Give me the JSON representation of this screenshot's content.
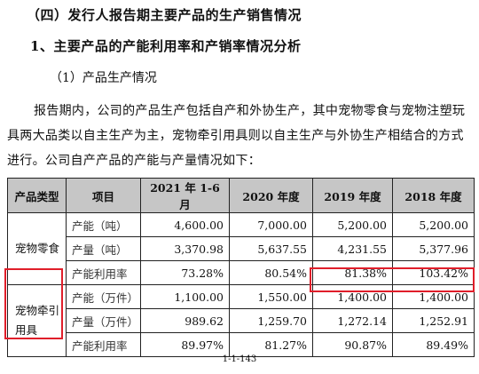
{
  "section_title": "（四）发行人报告期主要产品的生产销售情况",
  "subsection_title": "1、主要产品的产能利用率和产销率情况分析",
  "sub_subsection_title": "（1）产品生产情况",
  "paragraph": "报告期内，公司的产品生产包括自产和外协生产，其中宠物零食与宠物注塑玩具两大品类以自主生产为主，宠物牵引用具则以自主生产与外协生产相结合的方式进行。公司自产产品的产能与产量情况如下：",
  "table": {
    "headers": [
      "产品类型",
      "项目",
      "2021 年 1-6 月",
      "2020 年度",
      "2019 年度",
      "2018 年度"
    ],
    "groups": [
      {
        "category": "宠物零食",
        "rows": [
          {
            "item": "产能（吨）",
            "values": [
              "4,600.00",
              "7,000.00",
              "5,200.00",
              "5,200.00"
            ]
          },
          {
            "item": "产量（吨）",
            "values": [
              "3,370.98",
              "5,637.55",
              "4,231.55",
              "5,377.96"
            ]
          },
          {
            "item": "产能利用率",
            "values": [
              "73.28%",
              "80.54%",
              "81.38%",
              "103.42%"
            ]
          }
        ]
      },
      {
        "category": "宠物牵引用具",
        "rows": [
          {
            "item": "产能（万件）",
            "values": [
              "1,100.00",
              "1,550.00",
              "1,400.00",
              "1,400.00"
            ]
          },
          {
            "item": "产量（万件）",
            "values": [
              "989.62",
              "1,259.70",
              "1,272.14",
              "1,252.91"
            ]
          },
          {
            "item": "产能利用率",
            "values": [
              "89.97%",
              "81.27%",
              "90.87%",
              "89.49%"
            ]
          }
        ]
      }
    ]
  },
  "highlight_color": "#e01e2a",
  "page_number": "1-1-143"
}
